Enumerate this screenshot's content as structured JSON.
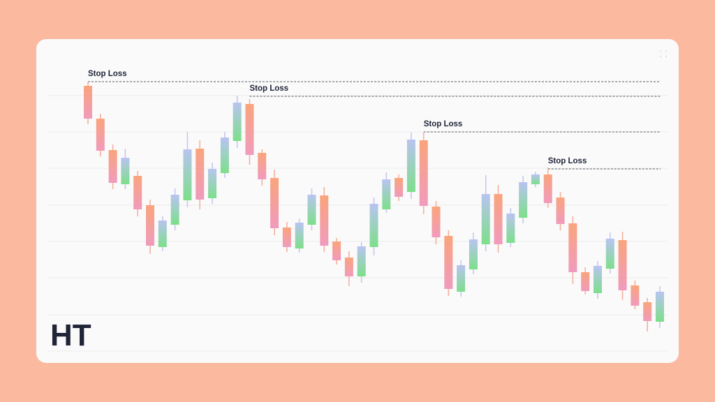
{
  "logo": "HT",
  "chart_data": {
    "type": "candlestick",
    "open": [
      380,
      333,
      288,
      239,
      251,
      209,
      149,
      181,
      216,
      290,
      219,
      255,
      301,
      354,
      284,
      248,
      177,
      147,
      181,
      223,
      157,
      134,
      107,
      149,
      203,
      248,
      228,
      302,
      207,
      165,
      85,
      117,
      153,
      225,
      155,
      191,
      239,
      253,
      220,
      183,
      113,
      83,
      118,
      159,
      94,
      70,
      42
    ],
    "high": [
      385,
      340,
      296,
      290,
      258,
      217,
      193,
      233,
      314,
      302,
      270,
      314,
      366,
      361,
      289,
      260,
      185,
      190,
      233,
      235,
      162,
      143,
      156,
      220,
      256,
      253,
      313,
      313,
      215,
      173,
      130,
      170,
      252,
      238,
      205,
      251,
      257,
      263,
      228,
      193,
      120,
      129,
      170,
      171,
      101,
      76,
      93
    ],
    "low": [
      325,
      279,
      232,
      232,
      193,
      139,
      143,
      173,
      206,
      203,
      211,
      248,
      291,
      267,
      237,
      166,
      142,
      141,
      173,
      142,
      124,
      93,
      98,
      137,
      198,
      215,
      218,
      196,
      153,
      79,
      78,
      110,
      143,
      141,
      149,
      183,
      235,
      205,
      173,
      96,
      81,
      75,
      111,
      73,
      60,
      28,
      33
    ],
    "close": [
      333,
      287,
      241,
      277,
      203,
      151,
      187,
      224,
      289,
      217,
      261,
      306,
      356,
      281,
      246,
      176,
      149,
      184,
      224,
      151,
      130,
      107,
      150,
      211,
      246,
      221,
      303,
      208,
      163,
      89,
      123,
      160,
      225,
      153,
      197,
      242,
      253,
      212,
      182,
      113,
      86,
      122,
      161,
      87,
      65,
      43,
      85
    ],
    "ylim": [
      0,
      418
    ],
    "yticks": [
      0,
      52,
      105,
      157,
      209,
      262,
      314,
      366
    ],
    "grid": true,
    "colors": {
      "up": [
        "#b9c3f1",
        "#7ddf8a"
      ],
      "down": [
        "#f9a47c",
        "#f09bbd"
      ]
    },
    "annotations": [
      {
        "text": "Stop Loss",
        "x": 0,
        "y": 386
      },
      {
        "text": "Stop Loss",
        "x": 13,
        "y": 365
      },
      {
        "text": "Stop Loss",
        "x": 27,
        "y": 314
      },
      {
        "text": "Stop Loss",
        "x": 37,
        "y": 261
      }
    ]
  }
}
